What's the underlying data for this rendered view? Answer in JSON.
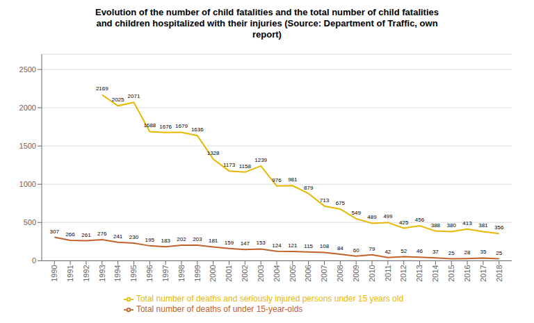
{
  "chart_data": {
    "type": "line",
    "title": "Evolution of the number of child fatalities and the total number of child fatalities\nand children hospitalized with their injuries (Source: Department of Traffic, own\nreport)",
    "x": [
      1990,
      1991,
      1992,
      1993,
      1994,
      1995,
      1996,
      1997,
      1998,
      1999,
      2000,
      2001,
      2002,
      2003,
      2004,
      2005,
      2006,
      2007,
      2008,
      2009,
      2010,
      2011,
      2012,
      2013,
      2014,
      2015,
      2016,
      2017,
      2018
    ],
    "series": [
      {
        "name": "Total number of deaths of under 15-year-olds",
        "color": "#c0622a",
        "values": [
          307,
          266,
          261,
          276,
          241,
          230,
          195,
          183,
          202,
          203,
          181,
          159,
          147,
          153,
          124,
          121,
          115,
          108,
          84,
          60,
          79,
          42,
          52,
          46,
          37,
          25,
          28,
          35,
          25
        ]
      },
      {
        "name": "Total number of deaths and seriously injured persons under 15 years old",
        "color": "#e6b800",
        "values": [
          null,
          null,
          null,
          2169,
          2025,
          2071,
          1688,
          1676,
          1679,
          1636,
          1328,
          1173,
          1158,
          1239,
          976,
          981,
          879,
          713,
          675,
          549,
          489,
          499,
          425,
          456,
          388,
          380,
          413,
          381,
          356
        ]
      }
    ],
    "xlim": [
      1989.2,
      2018.8
    ],
    "xticks": [
      1990,
      1991,
      1992,
      1993,
      1994,
      1995,
      1996,
      1997,
      1998,
      1999,
      2000,
      2001,
      2002,
      2003,
      2004,
      2005,
      2006,
      2007,
      2008,
      2009,
      2010,
      2011,
      2012,
      2013,
      2014,
      2015,
      2016,
      2017,
      2018
    ],
    "ylim": [
      0,
      2700
    ],
    "yticks": [
      0,
      500,
      1000,
      1500,
      2000,
      2500
    ],
    "grid": "y",
    "legend": "bottom",
    "data_labels": true
  }
}
